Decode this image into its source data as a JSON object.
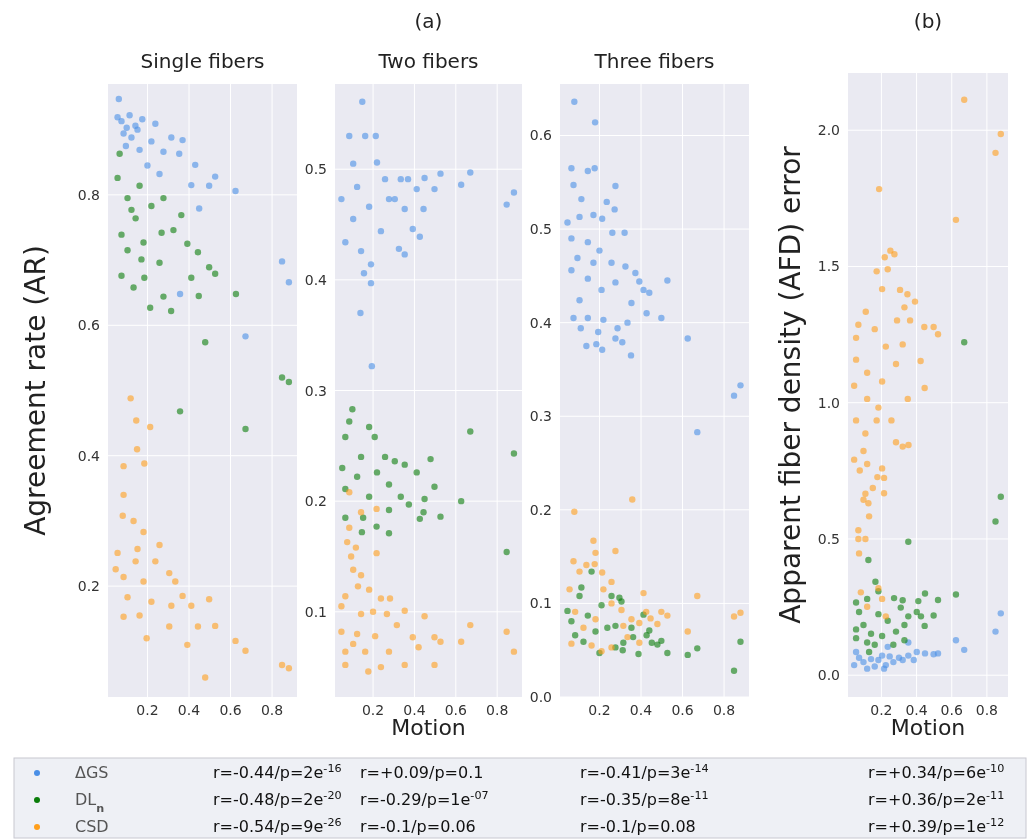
{
  "chart_data": [
    {
      "type": "scatter",
      "title": "Single fibers",
      "ylabel": "Agreement rate (AR)",
      "xlim": [
        0.01,
        0.92
      ],
      "xticks": [
        0.2,
        0.4,
        0.6,
        0.8
      ],
      "ylim": [
        0.03,
        0.97
      ],
      "yticks": [
        0.2,
        0.4,
        0.6,
        0.8
      ],
      "grid": true,
      "marker": "circle",
      "legend": "bottom",
      "annotations": [
        "r=-0.44/p=2e$^{-16}$",
        "r=-0.48/p=2e$^{-20}$",
        "r=-0.54/p=9e$^{-26}$"
      ],
      "series": [
        {
          "name": "ΔGS",
          "color": "#4a8fe6",
          "x": [
            0.062,
            0.056,
            0.085,
            0.142,
            0.238,
            0.315,
            0.369,
            0.353,
            0.43,
            0.526,
            0.497,
            0.411,
            0.624,
            0.449,
            0.258,
            0.2,
            0.162,
            0.096,
            0.075,
            0.114,
            0.175,
            0.219,
            0.277,
            0.848,
            0.881,
            0.357,
            0.672,
            0.123,
            0.152,
            0.1
          ],
          "values": [
            0.947,
            0.919,
            0.894,
            0.906,
            0.909,
            0.888,
            0.884,
            0.863,
            0.846,
            0.828,
            0.814,
            0.815,
            0.806,
            0.779,
            0.832,
            0.845,
            0.869,
            0.875,
            0.913,
            0.922,
            0.916,
            0.882,
            0.866,
            0.698,
            0.666,
            0.648,
            0.583,
            0.888,
            0.9,
            0.903
          ]
        },
        {
          "name": "DL$_{n}$",
          "color": "#0a7d0a",
          "x": [
            0.066,
            0.056,
            0.104,
            0.162,
            0.219,
            0.277,
            0.363,
            0.325,
            0.268,
            0.181,
            0.104,
            0.075,
            0.143,
            0.392,
            0.443,
            0.497,
            0.526,
            0.411,
            0.171,
            0.258,
            0.075,
            0.185,
            0.133,
            0.277,
            0.447,
            0.626,
            0.213,
            0.314,
            0.478,
            0.357,
            0.672,
            0.848,
            0.881,
            0.123
          ],
          "values": [
            0.863,
            0.826,
            0.795,
            0.814,
            0.783,
            0.795,
            0.769,
            0.746,
            0.742,
            0.727,
            0.715,
            0.739,
            0.764,
            0.725,
            0.712,
            0.689,
            0.679,
            0.673,
            0.701,
            0.696,
            0.676,
            0.673,
            0.658,
            0.644,
            0.645,
            0.648,
            0.627,
            0.622,
            0.574,
            0.468,
            0.441,
            0.52,
            0.513,
            0.777
          ]
        },
        {
          "name": "CSD",
          "color": "#ff9f1c",
          "x": [
            0.119,
            0.146,
            0.213,
            0.15,
            0.085,
            0.185,
            0.085,
            0.081,
            0.133,
            0.181,
            0.258,
            0.056,
            0.143,
            0.238,
            0.085,
            0.181,
            0.305,
            0.334,
            0.104,
            0.219,
            0.315,
            0.369,
            0.497,
            0.411,
            0.085,
            0.162,
            0.305,
            0.443,
            0.526,
            0.196,
            0.392,
            0.624,
            0.672,
            0.478,
            0.848,
            0.881,
            0.047,
            0.152
          ],
          "values": [
            0.488,
            0.454,
            0.444,
            0.41,
            0.384,
            0.388,
            0.34,
            0.308,
            0.3,
            0.283,
            0.263,
            0.251,
            0.238,
            0.238,
            0.214,
            0.207,
            0.22,
            0.207,
            0.183,
            0.176,
            0.17,
            0.185,
            0.18,
            0.17,
            0.153,
            0.155,
            0.138,
            0.138,
            0.139,
            0.12,
            0.11,
            0.116,
            0.101,
            0.06,
            0.079,
            0.074,
            0.226,
            0.257
          ]
        }
      ]
    },
    {
      "type": "scatter",
      "title": "Two fibers",
      "subtitle": "(a)",
      "xlabel": "Motion",
      "xlim": [
        0.016,
        0.92
      ],
      "xticks": [
        0.2,
        0.4,
        0.6,
        0.8
      ],
      "ylim": [
        0.023,
        0.577
      ],
      "yticks": [
        0.1,
        0.2,
        0.3,
        0.4,
        0.5
      ],
      "grid": true,
      "marker": "circle",
      "annotations": [
        "r=+0.09/p=0.1",
        "r=-0.29/p=1e$^{-07}$",
        "r=-0.1/p=0.06"
      ],
      "series": [
        {
          "color": "#4a8fe6",
          "x": [
            0.148,
            0.085,
            0.162,
            0.213,
            0.104,
            0.219,
            0.047,
            0.123,
            0.181,
            0.258,
            0.334,
            0.369,
            0.449,
            0.526,
            0.67,
            0.626,
            0.497,
            0.411,
            0.305,
            0.353,
            0.444,
            0.392,
            0.426,
            0.325,
            0.353,
            0.066,
            0.142,
            0.19,
            0.156,
            0.19,
            0.139,
            0.194,
            0.846,
            0.881,
            0.104,
            0.238,
            0.277
          ],
          "values": [
            0.561,
            0.53,
            0.53,
            0.53,
            0.505,
            0.506,
            0.473,
            0.484,
            0.466,
            0.491,
            0.491,
            0.491,
            0.492,
            0.496,
            0.497,
            0.486,
            0.482,
            0.482,
            0.473,
            0.464,
            0.464,
            0.446,
            0.439,
            0.428,
            0.423,
            0.434,
            0.426,
            0.414,
            0.406,
            0.397,
            0.37,
            0.322,
            0.468,
            0.479,
            0.455,
            0.444,
            0.473
          ]
        },
        {
          "color": "#0a7d0a",
          "x": [
            0.1,
            0.085,
            0.181,
            0.066,
            0.208,
            0.051,
            0.142,
            0.258,
            0.305,
            0.353,
            0.478,
            0.411,
            0.497,
            0.67,
            0.881,
            0.066,
            0.181,
            0.277,
            0.334,
            0.449,
            0.626,
            0.373,
            0.444,
            0.526,
            0.426,
            0.066,
            0.152,
            0.277,
            0.146,
            0.217,
            0.277,
            0.846,
            0.123,
            0.219
          ],
          "values": [
            0.283,
            0.272,
            0.267,
            0.258,
            0.258,
            0.23,
            0.24,
            0.24,
            0.236,
            0.233,
            0.238,
            0.226,
            0.213,
            0.263,
            0.243,
            0.211,
            0.204,
            0.215,
            0.204,
            0.202,
            0.2,
            0.197,
            0.19,
            0.186,
            0.184,
            0.185,
            0.185,
            0.192,
            0.172,
            0.177,
            0.171,
            0.154,
            0.222,
            0.226
          ]
        },
        {
          "color": "#ff9f1c",
          "x": [
            0.085,
            0.142,
            0.217,
            0.085,
            0.075,
            0.117,
            0.094,
            0.217,
            0.104,
            0.142,
            0.127,
            0.181,
            0.066,
            0.238,
            0.282,
            0.047,
            0.142,
            0.2,
            0.267,
            0.353,
            0.449,
            0.67,
            0.047,
            0.123,
            0.21,
            0.315,
            0.392,
            0.497,
            0.526,
            0.626,
            0.846,
            0.881,
            0.066,
            0.162,
            0.277,
            0.42,
            0.497,
            0.353,
            0.238,
            0.066,
            0.177,
            0.104
          ],
          "values": [
            0.208,
            0.19,
            0.193,
            0.176,
            0.163,
            0.158,
            0.15,
            0.153,
            0.138,
            0.133,
            0.123,
            0.12,
            0.114,
            0.112,
            0.112,
            0.105,
            0.098,
            0.1,
            0.098,
            0.101,
            0.096,
            0.088,
            0.082,
            0.08,
            0.078,
            0.088,
            0.077,
            0.077,
            0.073,
            0.073,
            0.082,
            0.064,
            0.064,
            0.064,
            0.064,
            0.068,
            0.052,
            0.052,
            0.05,
            0.052,
            0.046,
            0.071
          ]
        }
      ]
    },
    {
      "type": "scatter",
      "title": "Three fibers",
      "xlim": [
        0.01,
        0.92
      ],
      "xticks": [
        0.2,
        0.4,
        0.6,
        0.8
      ],
      "ylim": [
        0,
        0.655
      ],
      "yticks": [
        {
          "value": 0,
          "label": "0.0"
        },
        0.1,
        0.2,
        0.3,
        0.4,
        0.5,
        0.6
      ],
      "grid": true,
      "marker": "circle",
      "annotations": [
        "r=-0.41/p=3e$^{-14}$",
        "r=-0.35/p=8e$^{-11}$",
        "r=-0.1/p=0.08"
      ],
      "series": [
        {
          "color": "#4a8fe6",
          "x": [
            0.079,
            0.179,
            0.065,
            0.177,
            0.144,
            0.277,
            0.075,
            0.113,
            0.235,
            0.273,
            0.046,
            0.104,
            0.171,
            0.213,
            0.321,
            0.262,
            0.065,
            0.144,
            0.2,
            0.094,
            0.171,
            0.258,
            0.325,
            0.373,
            0.527,
            0.392,
            0.412,
            0.44,
            0.065,
            0.144,
            0.277,
            0.21,
            0.104,
            0.354,
            0.075,
            0.144,
            0.219,
            0.427,
            0.498,
            0.335,
            0.11,
            0.287,
            0.194,
            0.277,
            0.625,
            0.137,
            0.185,
            0.213,
            0.31,
            0.352,
            0.848,
            0.879,
            0.671
          ],
          "values": [
            0.636,
            0.614,
            0.565,
            0.565,
            0.562,
            0.546,
            0.547,
            0.532,
            0.529,
            0.521,
            0.507,
            0.513,
            0.515,
            0.511,
            0.496,
            0.496,
            0.49,
            0.486,
            0.477,
            0.469,
            0.464,
            0.464,
            0.46,
            0.453,
            0.445,
            0.444,
            0.435,
            0.432,
            0.456,
            0.447,
            0.443,
            0.435,
            0.424,
            0.421,
            0.405,
            0.405,
            0.403,
            0.41,
            0.405,
            0.4,
            0.394,
            0.394,
            0.39,
            0.383,
            0.383,
            0.375,
            0.377,
            0.371,
            0.379,
            0.365,
            0.322,
            0.333,
            0.283
          ]
        },
        {
          "color": "#0a7d0a",
          "x": [
            0.162,
            0.046,
            0.113,
            0.258,
            0.296,
            0.306,
            0.21,
            0.412,
            0.065,
            0.277,
            0.354,
            0.44,
            0.427,
            0.362,
            0.315,
            0.452,
            0.479,
            0.498,
            0.277,
            0.312,
            0.2,
            0.388,
            0.527,
            0.625,
            0.671,
            0.879,
            0.848,
            0.104,
            0.144,
            0.083,
            0.123,
            0.181,
            0.238
          ],
          "values": [
            0.134,
            0.092,
            0.117,
            0.108,
            0.106,
            0.102,
            0.098,
            0.088,
            0.081,
            0.076,
            0.074,
            0.071,
            0.066,
            0.064,
            0.058,
            0.058,
            0.056,
            0.06,
            0.053,
            0.05,
            0.047,
            0.046,
            0.047,
            0.045,
            0.052,
            0.059,
            0.028,
            0.108,
            0.087,
            0.066,
            0.059,
            0.07,
            0.074
          ]
        },
        {
          "color": "#ff9f1c",
          "x": [
            0.079,
            0.358,
            0.171,
            0.181,
            0.277,
            0.075,
            0.137,
            0.177,
            0.213,
            0.104,
            0.258,
            0.056,
            0.219,
            0.412,
            0.671,
            0.258,
            0.306,
            0.425,
            0.498,
            0.527,
            0.879,
            0.848,
            0.446,
            0.354,
            0.479,
            0.392,
            0.315,
            0.625,
            0.335,
            0.392,
            0.065,
            0.162,
            0.258,
            0.21,
            0.123,
            0.083,
            0.181
          ],
          "values": [
            0.198,
            0.211,
            0.167,
            0.154,
            0.156,
            0.145,
            0.141,
            0.142,
            0.133,
            0.134,
            0.123,
            0.115,
            0.115,
            0.111,
            0.108,
            0.1,
            0.093,
            0.091,
            0.091,
            0.087,
            0.09,
            0.086,
            0.084,
            0.083,
            0.078,
            0.079,
            0.076,
            0.07,
            0.064,
            0.058,
            0.057,
            0.055,
            0.053,
            0.049,
            0.074,
            0.091,
            0.083
          ]
        }
      ]
    },
    {
      "type": "scatter",
      "title": "(b)",
      "xlabel": "Motion",
      "ylabel": "Apparent fiber density (AFD) error",
      "xlim": [
        0.01,
        0.92
      ],
      "xticks": [
        0.2,
        0.4,
        0.6,
        0.8
      ],
      "ylim": [
        -0.08,
        2.21
      ],
      "yticks": [
        {
          "value": 0,
          "label": "0.0"
        },
        0.5,
        {
          "value": 1,
          "label": "1.0"
        },
        1.5,
        {
          "value": 2,
          "label": "2.0"
        }
      ],
      "grid": true,
      "marker": "circle",
      "annotations": [
        "r=+0.34/p=6e$^{-10}$",
        "r=+0.36/p=2e$^{-11}$",
        "r=+0.39/p=1e$^{-12}$"
      ],
      "series": [
        {
          "color": "#4a8fe6",
          "x": [
            0.671,
            0.879,
            0.849,
            0.624,
            0.522,
            0.497,
            0.448,
            0.401,
            0.353,
            0.353,
            0.3,
            0.236,
            0.204,
            0.056,
            0.045,
            0.098,
            0.162,
            0.225,
            0.268,
            0.073,
            0.141,
            0.183,
            0.247,
            0.321,
            0.384,
            0.119,
            0.215
          ],
          "values": [
            0.093,
            0.227,
            0.16,
            0.128,
            0.08,
            0.077,
            0.08,
            0.085,
            0.12,
            0.072,
            0.064,
            0.104,
            0.072,
            0.085,
            0.037,
            0.048,
            0.032,
            0.037,
            0.048,
            0.064,
            0.059,
            0.056,
            0.069,
            0.056,
            0.056,
            0.024,
            0.024
          ]
        },
        {
          "color": "#0a7d0a",
          "x": [
            0.671,
            0.879,
            0.849,
            0.353,
            0.126,
            0.166,
            0.183,
            0.448,
            0.624,
            0.522,
            0.41,
            0.272,
            0.321,
            0.056,
            0.119,
            0.401,
            0.425,
            0.497,
            0.353,
            0.446,
            0.31,
            0.073,
            0.183,
            0.236,
            0.331,
            0.283,
            0.056,
            0.098,
            0.141,
            0.204,
            0.331,
            0.056,
            0.119,
            0.162,
            0.268,
            0.13
          ],
          "values": [
            1.222,
            0.655,
            0.564,
            0.49,
            0.423,
            0.343,
            0.308,
            0.3,
            0.296,
            0.276,
            0.272,
            0.283,
            0.275,
            0.267,
            0.28,
            0.232,
            0.216,
            0.219,
            0.216,
            0.181,
            0.248,
            0.232,
            0.224,
            0.2,
            0.184,
            0.16,
            0.168,
            0.184,
            0.152,
            0.144,
            0.128,
            0.136,
            0.12,
            0.112,
            0.112,
            0.085
          ]
        },
        {
          "color": "#ff9f1c",
          "x": [
            0.671,
            0.879,
            0.849,
            0.187,
            0.624,
            0.251,
            0.274,
            0.219,
            0.173,
            0.236,
            0.204,
            0.306,
            0.348,
            0.391,
            0.331,
            0.289,
            0.363,
            0.444,
            0.497,
            0.522,
            0.111,
            0.056,
            0.069,
            0.162,
            0.225,
            0.321,
            0.283,
            0.423,
            0.446,
            0.35,
            0.056,
            0.119,
            0.204,
            0.045,
            0.119,
            0.183,
            0.056,
            0.109,
            0.173,
            0.257,
            0.283,
            0.354,
            0.321,
            0.098,
            0.045,
            0.077,
            0.119,
            0.204,
            0.177,
            0.215,
            0.151,
            0.215,
            0.109,
            0.098,
            0.126,
            0.13,
            0.069,
            0.069,
            0.109,
            0.073,
            0.083,
            0.183,
            0.204,
            0.225,
            0.119
          ],
          "values": [
            2.112,
            1.986,
            1.917,
            1.784,
            1.671,
            1.558,
            1.545,
            1.534,
            1.482,
            1.49,
            1.417,
            1.414,
            1.398,
            1.371,
            1.35,
            1.302,
            1.302,
            1.278,
            1.278,
            1.251,
            1.334,
            1.238,
            1.286,
            1.27,
            1.206,
            1.214,
            1.142,
            1.153,
            1.054,
            1.014,
            1.158,
            1.11,
            1.078,
            1.062,
            1.014,
            0.982,
            0.935,
            0.887,
            0.935,
            0.935,
            0.855,
            0.845,
            0.839,
            0.823,
            0.791,
            0.751,
            0.775,
            0.759,
            0.727,
            0.724,
            0.687,
            0.668,
            0.666,
            0.644,
            0.631,
            0.583,
            0.532,
            0.5,
            0.5,
            0.447,
            0.304,
            0.319,
            0.28,
            0.216,
            0.251
          ]
        }
      ]
    }
  ]
}
